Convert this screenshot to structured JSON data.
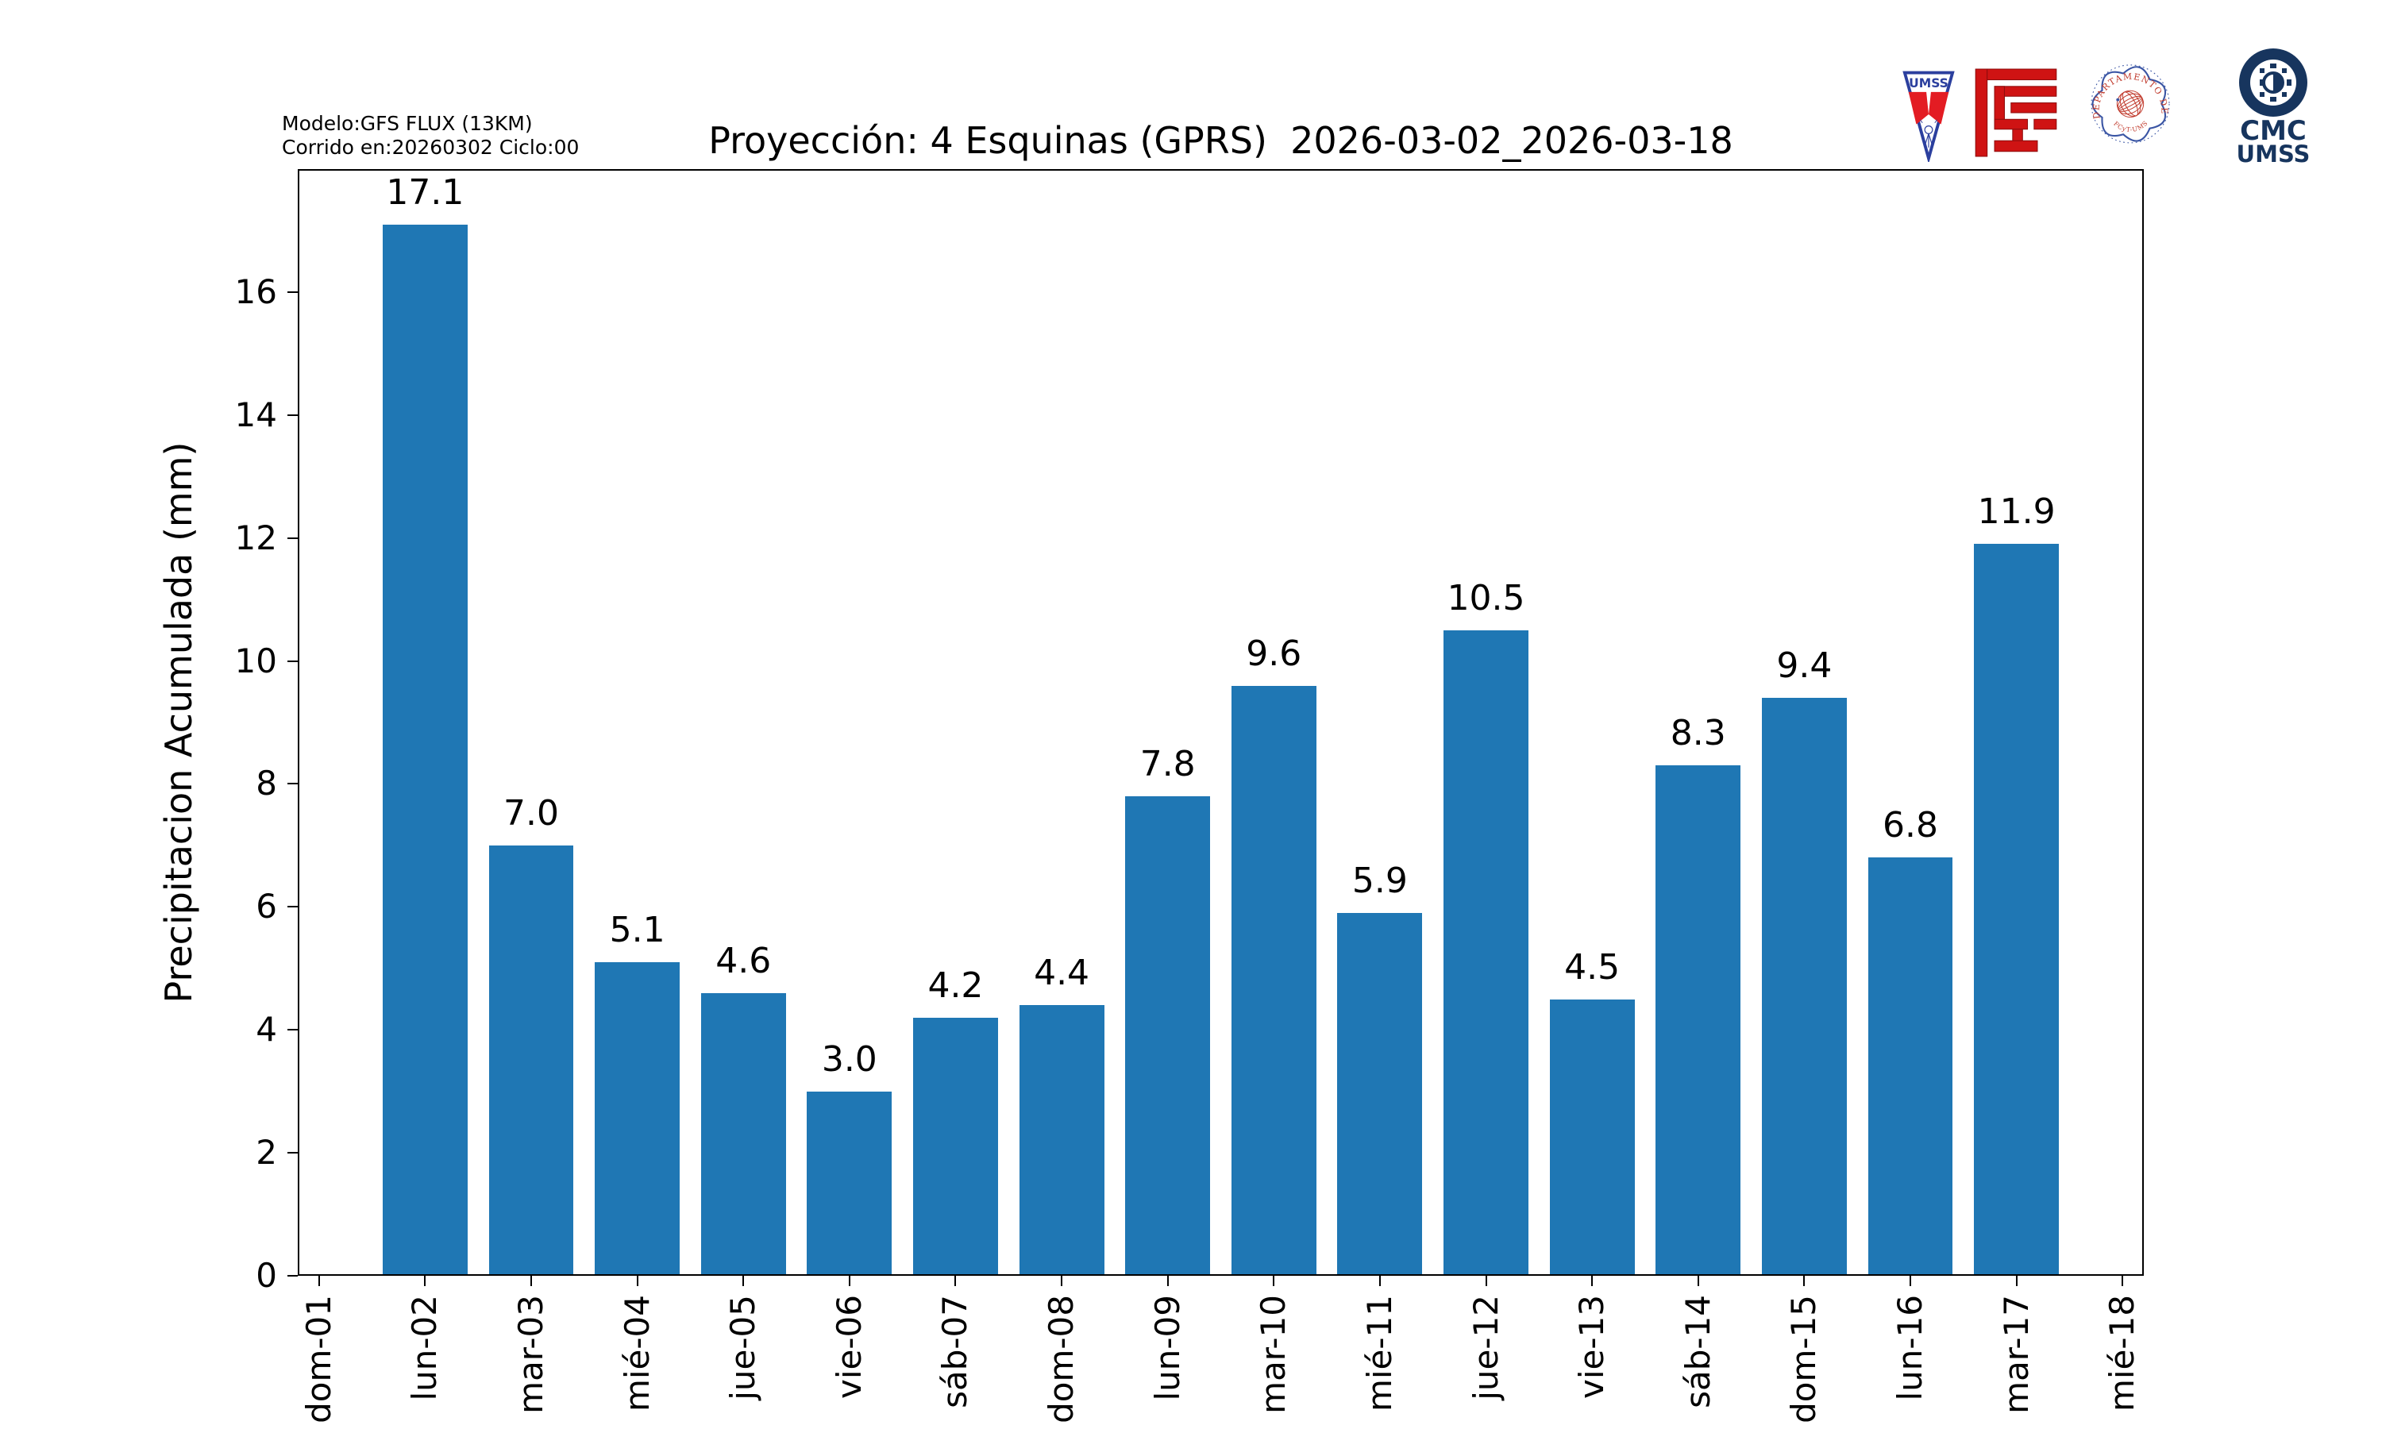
{
  "header": {
    "model_line1": "Modelo:GFS FLUX (13KM)",
    "model_line2": "Corrido en:20260302 Ciclo:00",
    "title": "Proyección: 4 Esquinas (GPRS)  2026-03-02_2026-03-18"
  },
  "logos": {
    "umss_pennant_label": "UMSS",
    "fisica_seal_text_top": "DEPARTAMENTO DE FÍSICA",
    "fisica_seal_text_bottom": "FCyT-UMSS",
    "cmc_line1": "CMC",
    "cmc_line2": "UMSS"
  },
  "chart_data": {
    "type": "bar",
    "title": "Proyección: 4 Esquinas (GPRS)  2026-03-02_2026-03-18",
    "xlabel": "",
    "ylabel": "Precipitacion Acumulada (mm)",
    "categories": [
      "dom-01",
      "lun-02",
      "mar-03",
      "mié-04",
      "jue-05",
      "vie-06",
      "sáb-07",
      "dom-08",
      "lun-09",
      "mar-10",
      "mié-11",
      "jue-12",
      "vie-13",
      "sáb-14",
      "dom-15",
      "lun-16",
      "mar-17",
      "mié-18"
    ],
    "values": [
      null,
      17.1,
      7.0,
      5.1,
      4.6,
      3.0,
      4.2,
      4.4,
      7.8,
      9.6,
      5.9,
      10.5,
      4.5,
      8.3,
      9.4,
      6.8,
      11.9,
      null
    ],
    "bar_color": "#1f77b4",
    "ylim": [
      0,
      18.0
    ],
    "yticks": [
      0,
      2,
      4,
      6,
      8,
      10,
      12,
      14,
      16
    ],
    "xlim": [
      -0.2,
      17.2
    ],
    "bar_width_units": 0.8,
    "grid": false,
    "legend": null,
    "value_label_decimals": 1
  }
}
